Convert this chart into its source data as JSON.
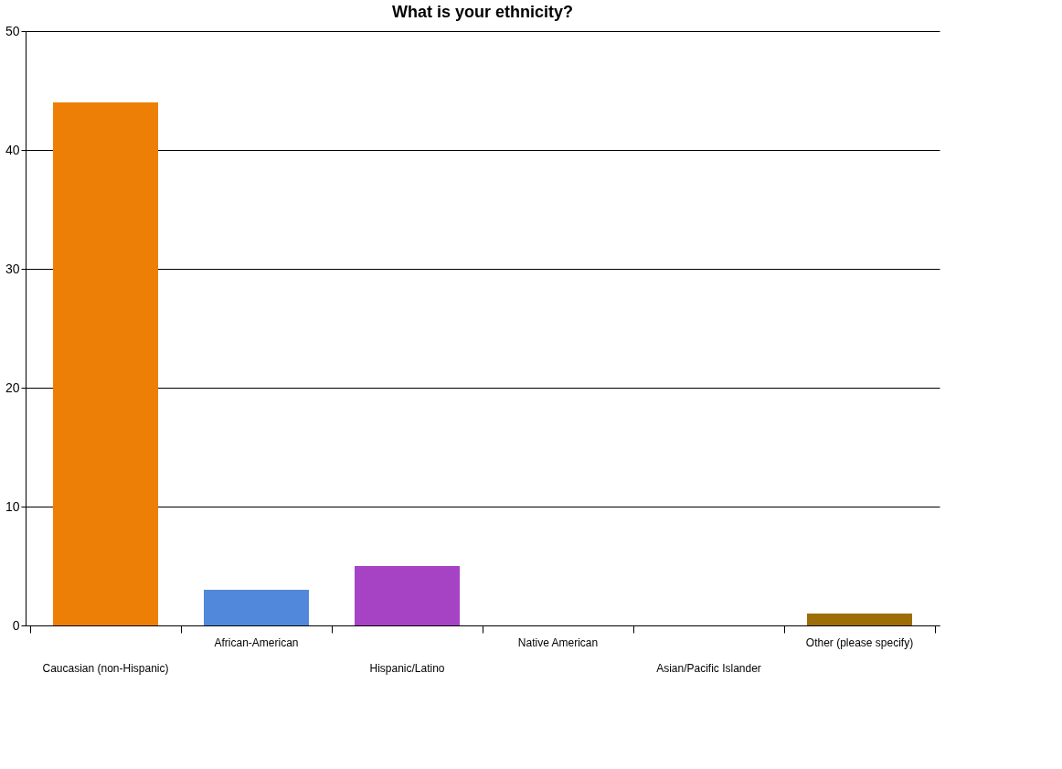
{
  "chart_data": {
    "type": "bar",
    "title": "What is your ethnicity?",
    "categories": [
      "Caucasian (non-Hispanic)",
      "African-American",
      "Hispanic/Latino",
      "Native American",
      "Asian/Pacific Islander",
      "Other (please specify)"
    ],
    "values": [
      44,
      3,
      5,
      0,
      0,
      1
    ],
    "colors": [
      "#ee7f06",
      "#5288dc",
      "#a643c4",
      "#3aa35a",
      "#d04545",
      "#9c6e05"
    ],
    "ylim": [
      0,
      50
    ],
    "yticks": [
      0,
      10,
      20,
      30,
      40,
      50
    ],
    "grid": "y"
  }
}
